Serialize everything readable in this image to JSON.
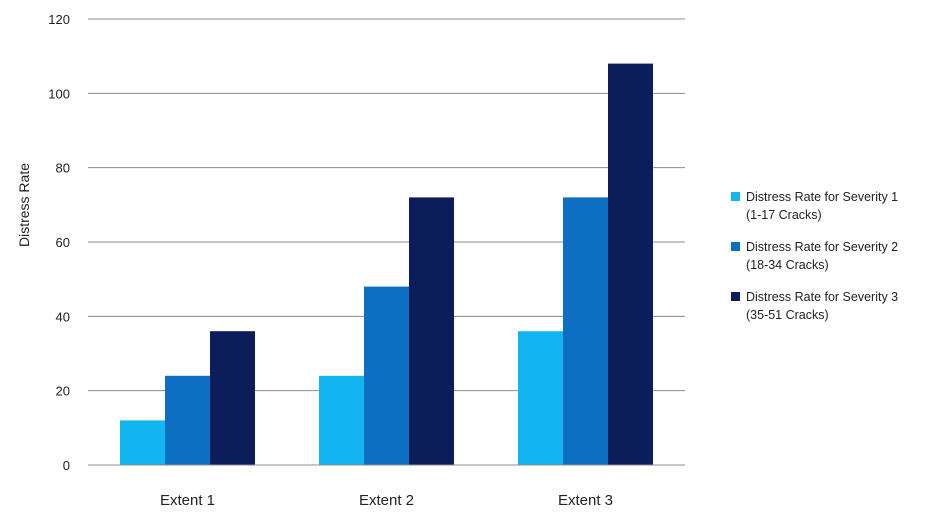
{
  "chart_data": {
    "type": "bar",
    "title": "",
    "xlabel": "",
    "ylabel": "Distress Rate",
    "categories": [
      "Extent 1",
      "Extent 2",
      "Extent 3"
    ],
    "ylim": [
      0,
      120
    ],
    "yticks": [
      "0",
      "20",
      "40",
      "60",
      "80",
      "100",
      "120"
    ],
    "grid": "horizontal",
    "legend_position": "right",
    "series": [
      {
        "name": "Distress Rate for Severity 1 (1-17 Cracks)",
        "name_lines": [
          "Distress Rate for Severity 1",
          "(1-17 Cracks)"
        ],
        "color": "#13b5f0",
        "values": [
          12,
          24,
          36
        ]
      },
      {
        "name": "Distress Rate for Severity 2 (18-34 Cracks)",
        "name_lines": [
          "Distress Rate for Severity 2",
          "(18-34 Cracks)"
        ],
        "color": "#0d6fc2",
        "values": [
          24,
          48,
          72
        ]
      },
      {
        "name": "Distress Rate for Severity 3 (35-51 Cracks)",
        "name_lines": [
          "Distress Rate for Severity 3",
          "(35-51 Cracks)"
        ],
        "color": "#0b1d5a",
        "values": [
          36,
          72,
          108
        ]
      }
    ]
  }
}
